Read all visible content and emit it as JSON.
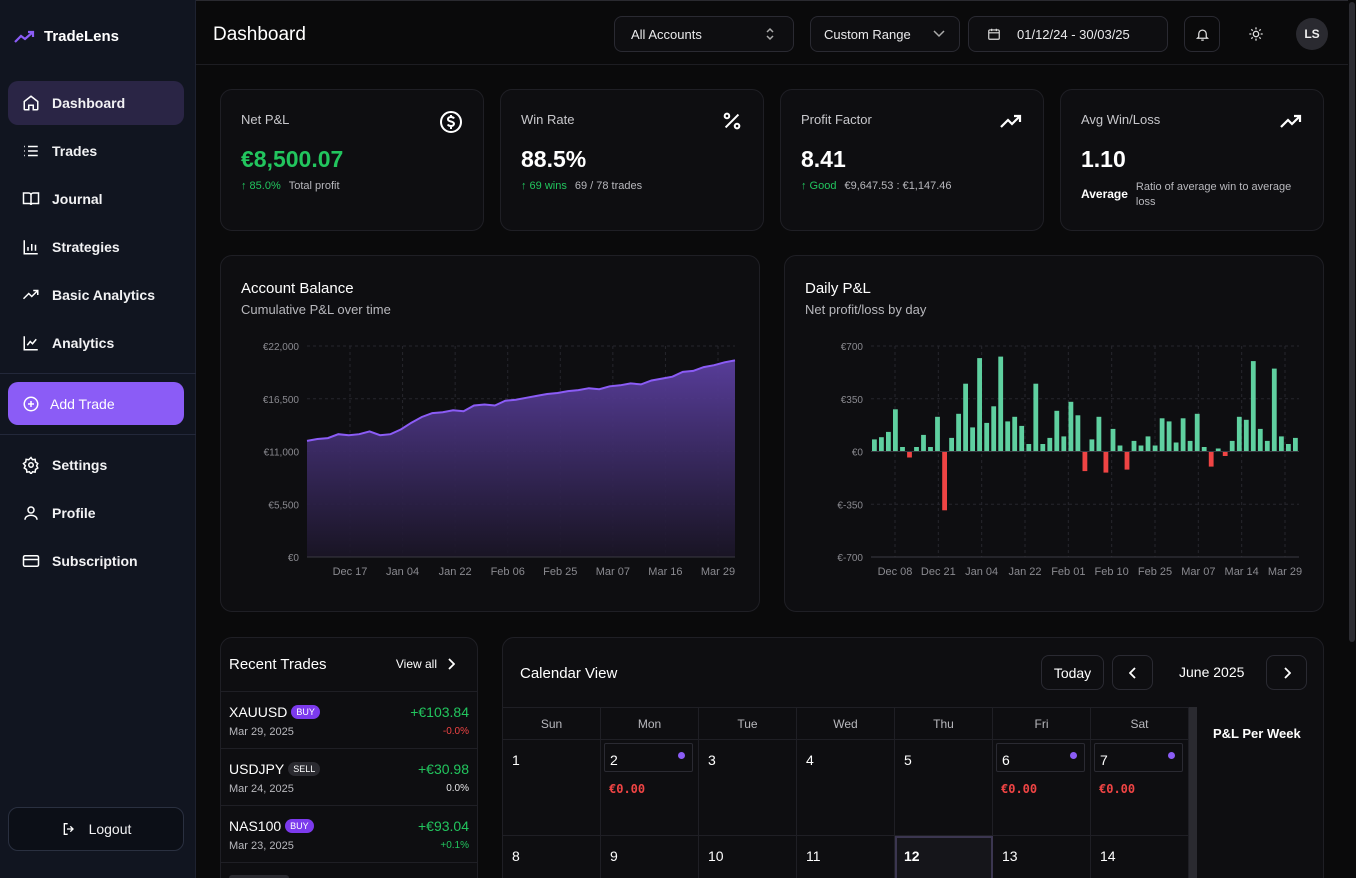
{
  "app": {
    "name": "TradeLens"
  },
  "sidebar": {
    "items": [
      {
        "label": "Dashboard",
        "icon": "home-icon"
      },
      {
        "label": "Trades",
        "icon": "list-icon"
      },
      {
        "label": "Journal",
        "icon": "book-icon"
      },
      {
        "label": "Strategies",
        "icon": "bar-chart-icon"
      },
      {
        "label": "Basic Analytics",
        "icon": "trending-up-icon"
      },
      {
        "label": "Analytics",
        "icon": "line-chart-icon"
      }
    ],
    "add_trade": "Add Trade",
    "items2": [
      {
        "label": "Settings",
        "icon": "gear-icon"
      },
      {
        "label": "Profile",
        "icon": "user-icon"
      },
      {
        "label": "Subscription",
        "icon": "credit-card-icon"
      }
    ],
    "logout": "Logout"
  },
  "header": {
    "title": "Dashboard",
    "account_select": "All Accounts",
    "range_select": "Custom Range",
    "date_range": "01/12/24 - 30/03/25",
    "avatar": "LS"
  },
  "stats": [
    {
      "title": "Net P&L",
      "value": "€8,500.07",
      "sub_accent": "↑ 85.0%",
      "sub": "Total profit"
    },
    {
      "title": "Win Rate",
      "value": "88.5%",
      "sub_accent": "↑ 69 wins",
      "sub": "69 / 78 trades"
    },
    {
      "title": "Profit Factor",
      "value": "8.41",
      "sub_accent": "↑ Good",
      "sub": "€9,647.53 : €1,147.46"
    },
    {
      "title": "Avg Win/Loss",
      "value": "1.10",
      "sub_accent": "Average",
      "sub": "Ratio of average win to average loss"
    }
  ],
  "balance_chart": {
    "title": "Account Balance",
    "subtitle": "Cumulative P&L over time",
    "chart_data": {
      "type": "area",
      "title": "Account Balance",
      "ylim": [
        0,
        22000
      ],
      "y_ticks": [
        "€22,000",
        "€16,500",
        "€11,000",
        "€5,500",
        "€0"
      ],
      "x_ticks": [
        "Dec 17",
        "Jan 04",
        "Jan 22",
        "Feb 06",
        "Feb 25",
        "Mar 07",
        "Mar 16",
        "Mar 29"
      ],
      "values": [
        12100,
        12300,
        12400,
        12800,
        12700,
        12800,
        13100,
        12700,
        12800,
        13300,
        14000,
        14600,
        15000,
        15100,
        15300,
        15200,
        15800,
        15900,
        15800,
        16300,
        16400,
        16600,
        16800,
        17000,
        17100,
        17300,
        17400,
        17600,
        17500,
        17800,
        17900,
        18100,
        18000,
        18400,
        18600,
        18800,
        19300,
        19400,
        19800,
        20000,
        20300,
        20500
      ]
    }
  },
  "daily_chart": {
    "title": "Daily P&L",
    "subtitle": "Net profit/loss by day",
    "chart_data": {
      "type": "bar",
      "title": "Daily P&L",
      "ylim": [
        -700,
        700
      ],
      "y_ticks": [
        "€700",
        "€350",
        "€0",
        "€-350",
        "€-700"
      ],
      "x_ticks": [
        "Dec 08",
        "Dec 21",
        "Jan 04",
        "Jan 22",
        "Feb 01",
        "Feb 10",
        "Feb 25",
        "Mar 07",
        "Mar 14",
        "Mar 29"
      ],
      "values": [
        80,
        95,
        130,
        280,
        30,
        -40,
        30,
        110,
        30,
        230,
        -390,
        90,
        250,
        450,
        160,
        620,
        190,
        300,
        630,
        200,
        230,
        170,
        50,
        450,
        50,
        90,
        270,
        100,
        330,
        240,
        -130,
        80,
        230,
        -140,
        150,
        40,
        -120,
        70,
        40,
        100,
        40,
        220,
        200,
        60,
        220,
        70,
        250,
        30,
        -100,
        20,
        -30,
        70,
        230,
        210,
        600,
        150,
        70,
        550,
        100,
        50,
        90
      ]
    }
  },
  "recent_trades": {
    "title": "Recent Trades",
    "view_all": "View all",
    "rows": [
      {
        "symbol": "XAUUSD",
        "side": "BUY",
        "date": "Mar 29, 2025",
        "pnl": "+€103.84",
        "pct": "-0.0%",
        "pct_color": "#ef4444"
      },
      {
        "symbol": "USDJPY",
        "side": "SELL",
        "date": "Mar 24, 2025",
        "pnl": "+€30.98",
        "pct": "0.0%",
        "pct_color": "#e6e6e8"
      },
      {
        "symbol": "NAS100",
        "side": "BUY",
        "date": "Mar 23, 2025",
        "pnl": "+€93.04",
        "pct": "+0.1%",
        "pct_color": "#22c55e"
      }
    ]
  },
  "calendar": {
    "title": "Calendar View",
    "today_label": "Today",
    "month": "June 2025",
    "weekdays": [
      "Sun",
      "Mon",
      "Tue",
      "Wed",
      "Thu",
      "Fri",
      "Sat"
    ],
    "week_panel_title": "P&L Per Week",
    "days_row1": [
      {
        "num": "1",
        "pnl": "",
        "dot": false
      },
      {
        "num": "2",
        "pnl": "€0.00",
        "dot": true
      },
      {
        "num": "3",
        "pnl": "",
        "dot": false
      },
      {
        "num": "4",
        "pnl": "",
        "dot": false
      },
      {
        "num": "5",
        "pnl": "",
        "dot": false
      },
      {
        "num": "6",
        "pnl": "€0.00",
        "dot": true
      },
      {
        "num": "7",
        "pnl": "€0.00",
        "dot": true
      }
    ],
    "days_row2": [
      "8",
      "9",
      "10",
      "11",
      "12",
      "13",
      "14"
    ]
  }
}
